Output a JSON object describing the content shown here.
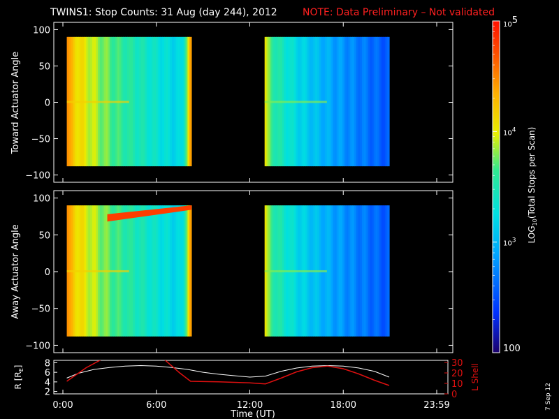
{
  "title": "TWINS1: Stop Counts: 31 Aug (day 244), 2012",
  "note": "NOTE: Data Preliminary – Not validated",
  "side_date": "7 Sep 12",
  "colors": {
    "title": "#ffffff",
    "note": "#ff2020",
    "l_shell": "#e01010",
    "radius": "#ffffff"
  },
  "chart_data": [
    {
      "type": "heatmap",
      "name": "toward",
      "ylabel": "Toward Actuator Angle",
      "ylim": [
        -110,
        110
      ],
      "yticks": [
        "100",
        "50",
        "0",
        "−50",
        "−100"
      ],
      "ytick_values": [
        100,
        50,
        0,
        -50,
        -100
      ],
      "xlim": [
        0,
        24
      ],
      "y_extent": [
        -88,
        90
      ],
      "segments": [
        [
          0.25,
          8.25
        ],
        [
          12.95,
          20.95
        ]
      ],
      "gap": "0"
    },
    {
      "type": "heatmap",
      "name": "away",
      "ylabel": "Away Actuator Angle",
      "ylim": [
        -110,
        110
      ],
      "yticks": [
        "100",
        "50",
        "0",
        "−50",
        "−100"
      ],
      "ytick_values": [
        100,
        50,
        0,
        -50,
        -100
      ],
      "xlim": [
        0,
        24
      ],
      "y_extent": [
        -88,
        90
      ],
      "segments": [
        [
          0.25,
          8.25
        ],
        [
          12.95,
          20.95
        ]
      ]
    },
    {
      "type": "line",
      "name": "orbit",
      "xlabel": "Time (UT)",
      "xticks": [
        "0:00",
        "6:00",
        "12:00",
        "18:00",
        "23:59"
      ],
      "xtick_values": [
        0,
        6,
        12,
        18,
        24
      ],
      "left_axis": {
        "label": "R [R",
        "label_sub": "E",
        "label_close": "]",
        "ylim": [
          1.5,
          8.5
        ],
        "ticks": [
          "8",
          "6",
          "4",
          "2"
        ],
        "tick_values": [
          8,
          6,
          4,
          2
        ]
      },
      "right_axis": {
        "label": "L Shell",
        "ylim": [
          0,
          32
        ],
        "ticks": [
          "30",
          "20",
          "10",
          "0"
        ],
        "tick_values": [
          30,
          20,
          10,
          0
        ]
      },
      "series": [
        {
          "axis": "left",
          "x": [
            0.25,
            1,
            2,
            3,
            4,
            5,
            6,
            7,
            8,
            9,
            10,
            11,
            12,
            13,
            14,
            15,
            16,
            17,
            18,
            19,
            20,
            20.95
          ],
          "y": [
            4.8,
            5.8,
            6.6,
            7.0,
            7.3,
            7.4,
            7.3,
            7.0,
            6.6,
            6.0,
            5.6,
            5.3,
            5.0,
            5.2,
            6.2,
            6.9,
            7.3,
            7.4,
            7.3,
            6.9,
            6.2,
            5.0
          ]
        },
        {
          "axis": "right",
          "x": [
            0.25,
            1.5,
            2.5,
            6.5,
            7.5,
            8.2,
            10,
            12,
            13.0,
            14,
            15,
            16,
            17,
            18,
            19,
            20,
            20.95
          ],
          "y": [
            12,
            25,
            33,
            33,
            20,
            12,
            11.5,
            10.5,
            9.5,
            15,
            21,
            25,
            26.5,
            24,
            19,
            13,
            8
          ]
        }
      ]
    },
    {
      "type": "heatmap",
      "name": "colorbar",
      "label": "LOG",
      "label_sub": "10",
      "label_rest": "(Total Stops per Scan)",
      "scale": "log",
      "range": [
        100,
        100000
      ],
      "ticks": [
        "10",
        "10",
        "10",
        "100"
      ],
      "tick_exponents": [
        "5",
        "4",
        "3",
        ""
      ],
      "tick_values": [
        100000,
        10000,
        1000,
        100
      ]
    }
  ]
}
